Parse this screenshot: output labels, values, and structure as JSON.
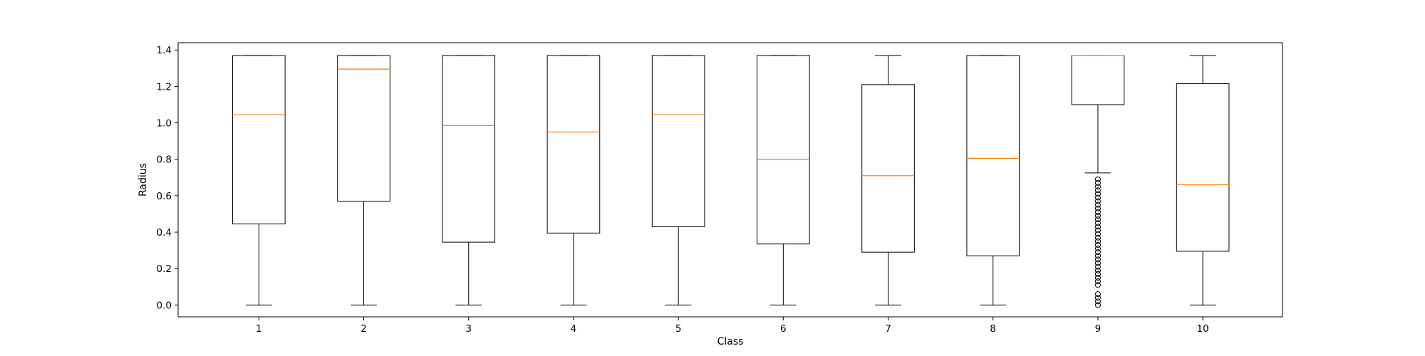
{
  "chart_data": {
    "type": "boxplot",
    "title": "",
    "xlabel": "Class",
    "ylabel": "Radius",
    "ylim": [
      -0.065,
      1.44
    ],
    "yticks": [
      0.0,
      0.2,
      0.4,
      0.6,
      0.8,
      1.0,
      1.2,
      1.4
    ],
    "ytick_labels": [
      "0.0",
      "0.2",
      "0.4",
      "0.6",
      "0.8",
      "1.0",
      "1.2",
      "1.4"
    ],
    "categories": [
      "1",
      "2",
      "3",
      "4",
      "5",
      "6",
      "7",
      "8",
      "9",
      "10"
    ],
    "grid": false,
    "legend": "none",
    "colors": {
      "box": "#000000",
      "median": "#ff7f0e",
      "outlier": "#000000",
      "background": "#ffffff"
    },
    "boxes": [
      {
        "label": "1",
        "whislo": 0.0,
        "q1": 0.445,
        "med": 1.045,
        "q3": 1.37,
        "whishi": 1.37,
        "fliers": []
      },
      {
        "label": "2",
        "whislo": 0.0,
        "q1": 0.57,
        "med": 1.295,
        "q3": 1.37,
        "whishi": 1.37,
        "fliers": []
      },
      {
        "label": "3",
        "whislo": 0.0,
        "q1": 0.345,
        "med": 0.985,
        "q3": 1.37,
        "whishi": 1.37,
        "fliers": []
      },
      {
        "label": "4",
        "whislo": 0.0,
        "q1": 0.395,
        "med": 0.95,
        "q3": 1.37,
        "whishi": 1.37,
        "fliers": []
      },
      {
        "label": "5",
        "whislo": 0.0,
        "q1": 0.43,
        "med": 1.045,
        "q3": 1.37,
        "whishi": 1.37,
        "fliers": []
      },
      {
        "label": "6",
        "whislo": 0.0,
        "q1": 0.335,
        "med": 0.8,
        "q3": 1.37,
        "whishi": 1.37,
        "fliers": []
      },
      {
        "label": "7",
        "whislo": 0.0,
        "q1": 0.29,
        "med": 0.71,
        "q3": 1.21,
        "whishi": 1.37,
        "fliers": []
      },
      {
        "label": "8",
        "whislo": 0.0,
        "q1": 0.27,
        "med": 0.805,
        "q3": 1.37,
        "whishi": 1.37,
        "fliers": []
      },
      {
        "label": "9",
        "whislo": 0.725,
        "q1": 1.1,
        "med": 1.37,
        "q3": 1.37,
        "whishi": 1.37,
        "fliers": [
          0.0,
          0.02,
          0.04,
          0.06,
          0.11,
          0.13,
          0.15,
          0.17,
          0.19,
          0.21,
          0.23,
          0.25,
          0.27,
          0.29,
          0.31,
          0.33,
          0.35,
          0.37,
          0.39,
          0.41,
          0.43,
          0.45,
          0.47,
          0.49,
          0.51,
          0.53,
          0.55,
          0.57,
          0.59,
          0.61,
          0.63,
          0.65,
          0.67,
          0.69
        ]
      },
      {
        "label": "10",
        "whislo": 0.0,
        "q1": 0.295,
        "med": 0.66,
        "q3": 1.215,
        "whishi": 1.37,
        "fliers": []
      }
    ]
  }
}
